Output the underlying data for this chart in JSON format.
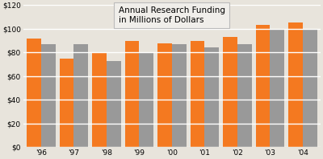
{
  "title": "Annual Research Funding\nin Millions of Dollars",
  "years": [
    "'96",
    "'97",
    "'98",
    "'99",
    "'00",
    "'01",
    "'02",
    "'03",
    "'04"
  ],
  "orange_values": [
    92,
    75,
    80,
    90,
    88,
    90,
    93,
    103,
    105
  ],
  "gray_values": [
    87,
    87,
    73,
    80,
    87,
    84,
    87,
    100,
    100
  ],
  "orange_color": "#F47920",
  "gray_color": "#999999",
  "ylim": [
    0,
    120
  ],
  "yticks": [
    0,
    20,
    40,
    60,
    80,
    100,
    120
  ],
  "ytick_labels": [
    "$0",
    "$20",
    "$40",
    "$60",
    "$80",
    "$100",
    "$120"
  ],
  "bg_color": "#E8E4DC",
  "plot_bg_color": "#E8E4DC",
  "grid_color": "#FFFFFF",
  "title_box_color": "#F0EEEA",
  "title_fontsize": 7.5,
  "tick_fontsize": 6.5,
  "bar_width": 0.44,
  "bar_gap": 0.0
}
